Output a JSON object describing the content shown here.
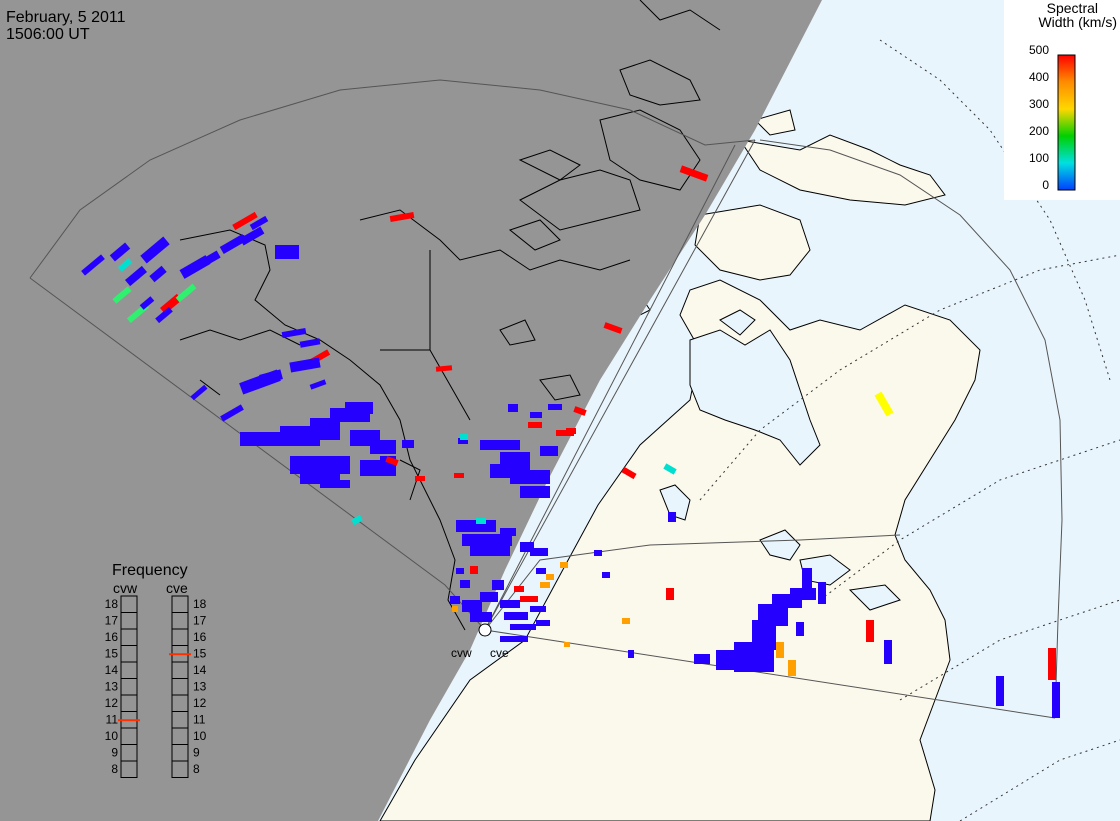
{
  "header": {
    "date": "February, 5 2011",
    "time": "1506:00 UT"
  },
  "colorbar": {
    "title_line1": "Spectral",
    "title_line2": "Width (km/s)",
    "ticks": [
      "500",
      "400",
      "300",
      "200",
      "100",
      "0"
    ],
    "stops": [
      "#ff0000",
      "#ff8c00",
      "#ffd700",
      "#00d000",
      "#00e0e0",
      "#0040ff"
    ]
  },
  "frequency": {
    "title": "Frequency",
    "radars": [
      {
        "label": "cvw",
        "value": 11
      },
      {
        "label": "cve",
        "value": 15
      }
    ],
    "scale": [
      "18",
      "17",
      "16",
      "15",
      "14",
      "13",
      "12",
      "11",
      "10",
      "9",
      "8"
    ],
    "marker_color": "#ff3000"
  },
  "stations": {
    "west": "cvw",
    "east": "cve"
  },
  "colors": {
    "night": "#959595",
    "land_day": "#fbf8ec",
    "ocean_day": "#e9f5fc",
    "scatter_blue": "#2600ff",
    "scatter_red": "#ff0000",
    "scatter_cyan": "#00e0d0",
    "scatter_green": "#30f070",
    "scatter_orange": "#ffa000",
    "scatter_yellow": "#ffff00"
  }
}
